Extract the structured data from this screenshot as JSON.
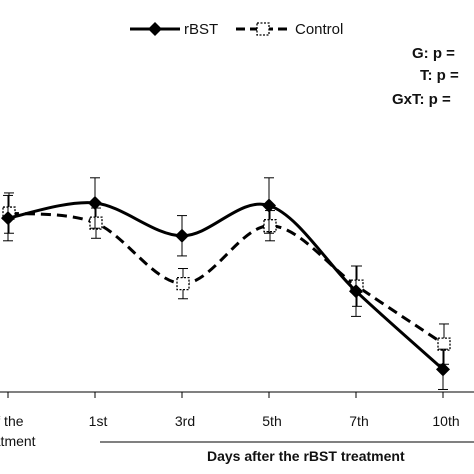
{
  "chart_data": {
    "type": "line",
    "categories": [
      "of the\ntreatment",
      "1st",
      "3rd",
      "5th",
      "7th",
      "10th"
    ],
    "xlabel": "Days after the rBST treatment",
    "ylabel": "",
    "title": "",
    "ylim": [
      0,
      100
    ],
    "grid": false,
    "legend_position": "top",
    "stats": [
      "G:  p =",
      "T:  p =",
      "GxT:  p ="
    ],
    "series": [
      {
        "name": "rBST",
        "style": "solid",
        "marker": "diamond-filled",
        "color": "#000000",
        "values": [
          69,
          75,
          62,
          74,
          40,
          9
        ],
        "errors": [
          9,
          10,
          8,
          11,
          10,
          8
        ]
      },
      {
        "name": "Control",
        "style": "dashed",
        "marker": "square-open",
        "color": "#000000",
        "values": [
          71,
          67,
          43,
          66,
          42,
          19
        ],
        "errors": [
          8,
          6,
          6,
          6,
          8,
          8
        ]
      }
    ]
  }
}
